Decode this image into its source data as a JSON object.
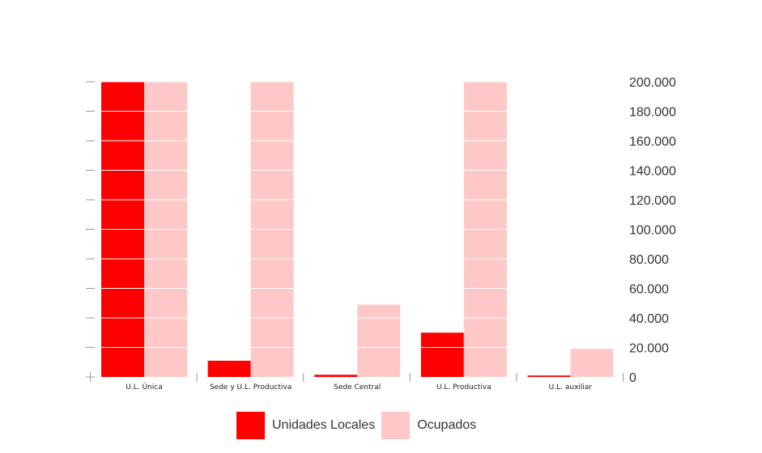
{
  "chart_data": {
    "type": "bar",
    "categories": [
      "U.L. Única",
      "Sede y U.L. Productiva",
      "Sede Central",
      "U.L. Productiva",
      "U.L. auxiliar"
    ],
    "series": [
      {
        "name": "Unidades Locales",
        "values": [
          200000,
          11000,
          1500,
          30000,
          1000
        ]
      },
      {
        "name": "Ocupados",
        "values": [
          200000,
          200000,
          49000,
          200000,
          19000
        ]
      }
    ],
    "ylim": [
      0,
      200000
    ],
    "yticks": [
      0,
      20000,
      40000,
      60000,
      80000,
      100000,
      120000,
      140000,
      160000,
      180000,
      200000
    ],
    "ytick_labels": [
      "0",
      "20.000",
      "40.000",
      "60.000",
      "80.000",
      "100.000",
      "120.000",
      "140.000",
      "160.000",
      "180.000",
      "200.000"
    ],
    "grid": true,
    "legend_position": "bottom",
    "colors": {
      "Unidades Locales": "#ff0000",
      "Ocupados": "#ffc8c8",
      "gridline": "#ffffff",
      "axis": "#999999",
      "text": "#333333"
    }
  }
}
